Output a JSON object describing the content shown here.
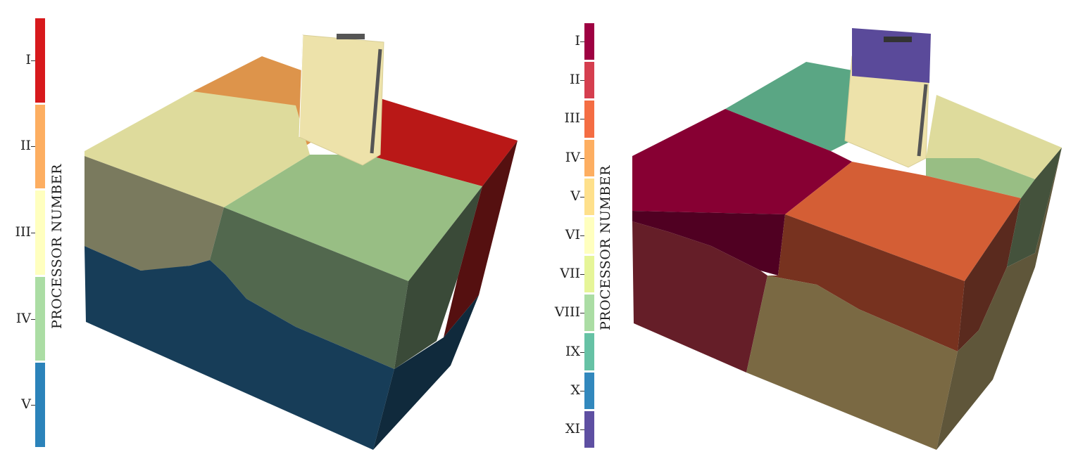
{
  "figures": [
    {
      "colorbar": {
        "title": "PROCESSOR NUMBER",
        "labels": [
          "I",
          "II",
          "III",
          "IV",
          "V"
        ],
        "colors": [
          "#d7191c",
          "#fdae61",
          "#ffffbf",
          "#abdda4",
          "#2b83ba"
        ]
      },
      "model": "3D soil block with tower, partitioned into 5 processor domains"
    },
    {
      "colorbar": {
        "title": "PROCESSOR NUMBER",
        "labels": [
          "I",
          "II",
          "III",
          "IV",
          "V",
          "VI",
          "VII",
          "VIII",
          "IX",
          "X",
          "XI"
        ],
        "colors": [
          "#9e0142",
          "#d53e4f",
          "#f46d43",
          "#fdae61",
          "#fee08b",
          "#ffffbf",
          "#e6f598",
          "#abdda4",
          "#66c2a5",
          "#3288bd",
          "#5e4fa2"
        ]
      },
      "model": "3D soil block with tower, partitioned into 11 processor domains"
    }
  ]
}
